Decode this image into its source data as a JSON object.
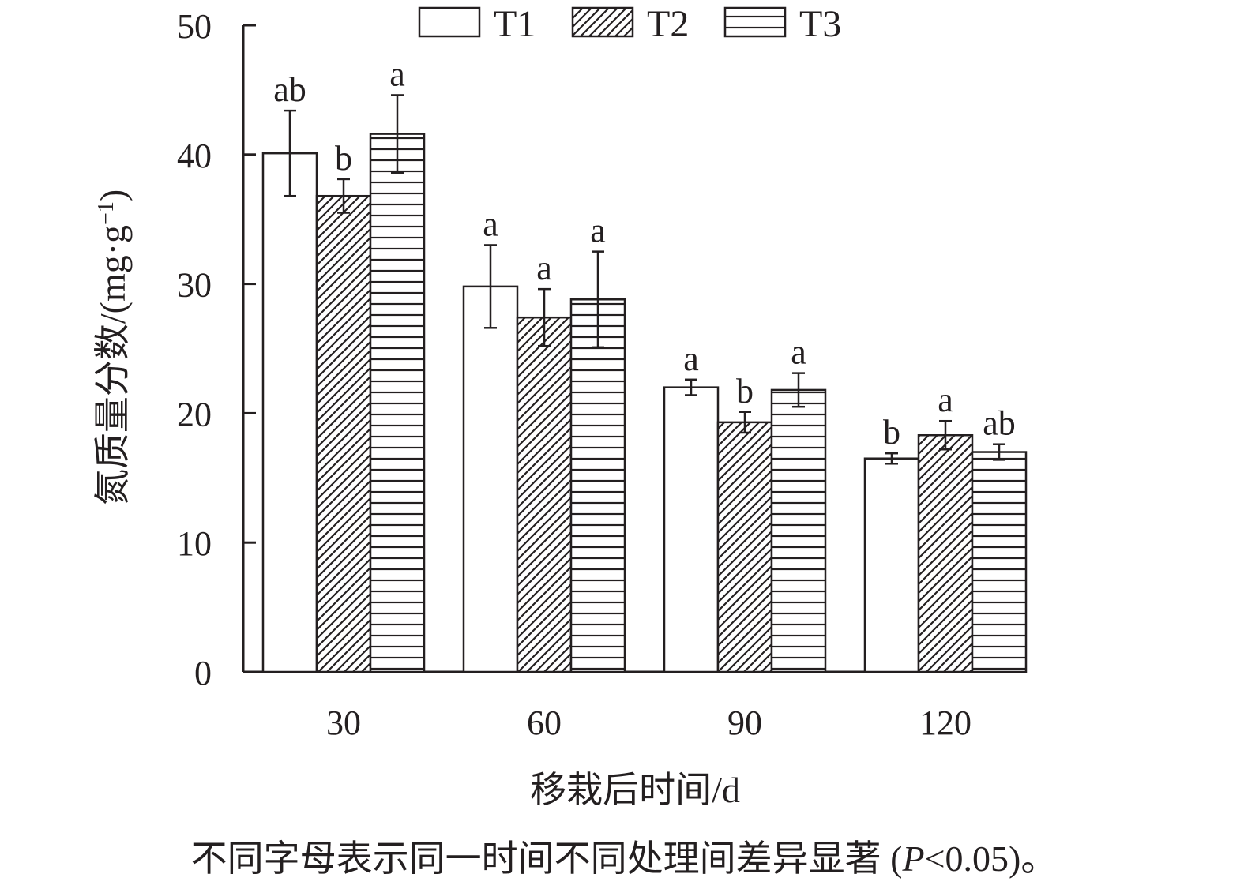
{
  "chart_data": {
    "type": "bar",
    "xlabel": "移栽后时间/d",
    "ylabel": "氮质量分数/(mg·g⁻¹)",
    "ylabel_parts": {
      "main": "氮质量分数/(mg·g",
      "sup": "−1",
      "close": ")"
    },
    "ylim": [
      0,
      50
    ],
    "yticks": [
      "0",
      "10",
      "20",
      "30",
      "40",
      "50"
    ],
    "categories": [
      "30",
      "60",
      "90",
      "120"
    ],
    "legend_position": "top",
    "series": [
      {
        "name": "T1",
        "pattern": "none",
        "values": [
          40.1,
          29.8,
          22.0,
          16.5
        ],
        "errors": [
          3.3,
          3.2,
          0.6,
          0.4
        ],
        "labels": [
          "ab",
          "a",
          "a",
          "b"
        ]
      },
      {
        "name": "T2",
        "pattern": "diagonal",
        "values": [
          36.8,
          27.4,
          19.3,
          18.3
        ],
        "errors": [
          1.3,
          2.2,
          0.8,
          1.1
        ],
        "labels": [
          "b",
          "a",
          "b",
          "a"
        ]
      },
      {
        "name": "T3",
        "pattern": "horizontal",
        "values": [
          41.6,
          28.8,
          21.8,
          17.0
        ],
        "errors": [
          3.0,
          3.7,
          1.3,
          0.6
        ],
        "labels": [
          "a",
          "a",
          "a",
          "ab"
        ]
      }
    ],
    "note": "不同字母表示同一时间不同处理间差异显著 (P<0.05)。",
    "note_parts": {
      "before": "不同字母表示同一时间不同处理间差异显著 (",
      "italic": "P",
      "after": "<0.05)。"
    }
  },
  "colors": {
    "ink": "#231f20",
    "bar_fill": "#ffffff"
  }
}
